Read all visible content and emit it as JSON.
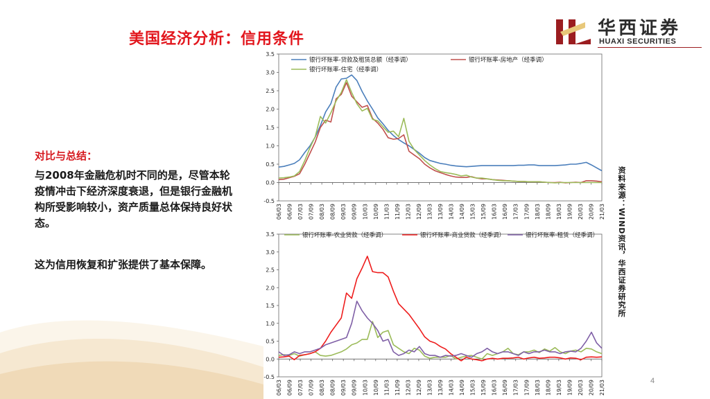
{
  "page": {
    "title": "美国经济分析：信用条件",
    "page_number": "4",
    "source": "资料来源：WIND资讯，华西证券研究所"
  },
  "logo": {
    "cn": "华西证券",
    "en": "HUAXI SECURITIES",
    "color": "#9b1d20"
  },
  "summary": {
    "heading": "对比与总结：",
    "paragraph1": "与2008年金融危机时不同的是，尽管本轮疫情冲击下经济深度衰退，但是银行金融机构所受影响较小，资产质量总体保持良好状态。",
    "paragraph2": "这为信用恢复和扩张提供了基本保障。"
  },
  "chart_data": [
    {
      "type": "line",
      "ylim": [
        -0.5,
        3.5
      ],
      "yticks": [
        "-0.5",
        "0.0",
        "0.5",
        "1.0",
        "1.5",
        "2.0",
        "2.5",
        "3.0",
        "3.5"
      ],
      "xticks": [
        "06/03",
        "06/09",
        "07/03",
        "07/09",
        "08/03",
        "08/09",
        "09/03",
        "09/09",
        "10/03",
        "10/09",
        "11/03",
        "11/09",
        "12/03",
        "12/09",
        "13/03",
        "13/09",
        "14/03",
        "14/09",
        "15/03",
        "15/09",
        "16/03",
        "16/09",
        "17/03",
        "17/09",
        "18/03",
        "18/09",
        "19/03",
        "19/09",
        "20/03",
        "20/09",
        "21/03"
      ],
      "legend_position": "top",
      "series": [
        {
          "name": "银行坏账率-贷款及租赁总额（经季调）",
          "color": "#4a7ebb",
          "values": [
            0.42,
            0.44,
            0.48,
            0.52,
            0.62,
            0.82,
            1.0,
            1.24,
            1.55,
            1.92,
            2.15,
            2.6,
            2.82,
            2.84,
            2.93,
            2.78,
            2.48,
            2.22,
            2.0,
            1.76,
            1.6,
            1.42,
            1.28,
            1.17,
            1.08,
            1.0,
            0.9,
            0.8,
            0.68,
            0.6,
            0.56,
            0.52,
            0.5,
            0.47,
            0.45,
            0.44,
            0.43,
            0.44,
            0.45,
            0.46,
            0.46,
            0.46,
            0.46,
            0.46,
            0.46,
            0.46,
            0.47,
            0.47,
            0.48,
            0.48,
            0.46,
            0.46,
            0.46,
            0.46,
            0.47,
            0.48,
            0.5,
            0.5,
            0.52,
            0.55,
            0.48,
            0.4,
            0.32
          ]
        },
        {
          "name": "银行坏账率-房地产（经季调）",
          "color": "#c0504d",
          "values": [
            0.08,
            0.09,
            0.13,
            0.17,
            0.24,
            0.5,
            0.8,
            1.1,
            1.5,
            1.7,
            1.65,
            2.28,
            2.4,
            2.72,
            2.35,
            2.2,
            2.05,
            2.1,
            1.75,
            1.62,
            1.45,
            1.22,
            1.18,
            1.2,
            1.3,
            0.85,
            0.75,
            0.65,
            0.5,
            0.4,
            0.32,
            0.27,
            0.22,
            0.18,
            0.15,
            0.14,
            0.14,
            0.16,
            0.12,
            0.1,
            0.1,
            0.08,
            0.07,
            0.06,
            0.05,
            0.04,
            0.03,
            0.03,
            0.02,
            0.02,
            0.02,
            0.01,
            0.0,
            0.0,
            0.01,
            -0.01,
            0.0,
            0.01,
            0.0,
            0.05,
            0.05,
            0.04,
            0.02
          ]
        },
        {
          "name": "银行坏账率-住宅（经季调）",
          "color": "#9bbb59",
          "values": [
            0.12,
            0.13,
            0.15,
            0.18,
            0.3,
            0.6,
            0.95,
            1.25,
            1.8,
            1.62,
            1.9,
            2.22,
            2.45,
            2.8,
            2.45,
            2.15,
            1.95,
            2.02,
            1.72,
            1.68,
            1.52,
            1.37,
            1.4,
            1.25,
            1.75,
            1.12,
            0.9,
            0.75,
            0.6,
            0.48,
            0.38,
            0.3,
            0.27,
            0.25,
            0.22,
            0.18,
            0.2,
            0.15,
            0.12,
            0.12,
            0.1,
            0.08,
            0.06,
            0.05,
            0.05,
            0.04,
            0.03,
            0.03,
            0.02,
            0.02,
            0.02,
            0.01,
            0.0,
            -0.01,
            0.0,
            0.0,
            0.0,
            0.0,
            0.0,
            0.0,
            0.0,
            0.0,
            0.0
          ]
        }
      ]
    },
    {
      "type": "line",
      "ylim": [
        -0.5,
        3.5
      ],
      "yticks": [
        "-0.5",
        "0.0",
        "0.5",
        "1.0",
        "1.5",
        "2.0",
        "2.5",
        "3.0",
        "3.5"
      ],
      "xticks": [
        "06/03",
        "06/09",
        "07/03",
        "07/09",
        "08/03",
        "08/09",
        "09/03",
        "09/09",
        "10/03",
        "10/09",
        "11/03",
        "11/09",
        "12/03",
        "12/09",
        "13/03",
        "13/09",
        "14/03",
        "14/09",
        "15/03",
        "15/09",
        "16/03",
        "16/09",
        "17/03",
        "17/09",
        "18/03",
        "18/09",
        "19/03",
        "19/09",
        "20/03",
        "20/09",
        "21/03"
      ],
      "legend_position": "top",
      "series": [
        {
          "name": "银行坏账率-农业贷款（经季调）",
          "color": "#9bbb59",
          "values": [
            0.1,
            0.12,
            0.1,
            0.15,
            0.08,
            0.12,
            0.15,
            0.2,
            0.1,
            0.08,
            0.1,
            0.15,
            0.2,
            0.28,
            0.4,
            0.45,
            0.55,
            0.55,
            1.05,
            0.6,
            0.75,
            0.8,
            0.4,
            0.3,
            0.2,
            0.15,
            0.3,
            0.25,
            0.08,
            0.02,
            0.05,
            0.05,
            0.05,
            0.1,
            0.0,
            0.05,
            0.08,
            0.1,
            0.05,
            0.0,
            0.15,
            0.1,
            0.15,
            0.2,
            0.3,
            0.15,
            0.12,
            0.2,
            0.2,
            0.25,
            0.18,
            0.28,
            0.22,
            0.32,
            0.2,
            0.15,
            0.22,
            0.25,
            0.2,
            0.3,
            0.28,
            0.2,
            0.15
          ]
        },
        {
          "name": "银行坏账率-商业贷款（经季调）",
          "color": "#ee1c1c",
          "values": [
            0.05,
            0.06,
            0.08,
            -0.02,
            0.1,
            0.12,
            0.15,
            0.2,
            0.3,
            0.5,
            0.75,
            0.95,
            1.15,
            1.85,
            1.7,
            2.25,
            2.55,
            2.88,
            2.45,
            2.42,
            2.42,
            2.3,
            1.9,
            1.55,
            1.4,
            1.25,
            1.05,
            0.85,
            0.62,
            0.5,
            0.45,
            0.35,
            0.28,
            0.15,
            0.05,
            -0.05,
            0.05,
            0.0,
            -0.02,
            -0.05,
            0.0,
            0.02,
            0.0,
            0.02,
            0.02,
            0.03,
            0.05,
            0.0,
            0.03,
            0.05,
            0.02,
            0.03,
            0.05,
            0.05,
            0.03,
            0.0,
            0.03,
            0.02,
            -0.02,
            0.05,
            0.06,
            0.05,
            0.06
          ]
        },
        {
          "name": "银行坏账率-租赁（经季调）",
          "color": "#7f5fa6",
          "values": [
            0.2,
            0.1,
            0.12,
            0.2,
            0.15,
            0.2,
            0.2,
            0.25,
            0.3,
            0.4,
            0.45,
            0.5,
            0.55,
            0.6,
            1.0,
            1.62,
            1.35,
            1.15,
            1.0,
            0.8,
            0.5,
            0.55,
            0.2,
            0.1,
            0.15,
            0.25,
            0.2,
            0.35,
            0.15,
            0.1,
            0.1,
            0.05,
            0.1,
            0.08,
            0.1,
            0.15,
            0.1,
            0.05,
            0.15,
            0.2,
            0.3,
            0.2,
            0.15,
            0.2,
            0.2,
            0.15,
            0.1,
            0.2,
            0.15,
            0.2,
            0.2,
            0.25,
            0.2,
            0.2,
            0.15,
            0.2,
            0.22,
            0.2,
            0.3,
            0.5,
            0.75,
            0.45,
            0.3
          ]
        }
      ]
    }
  ]
}
